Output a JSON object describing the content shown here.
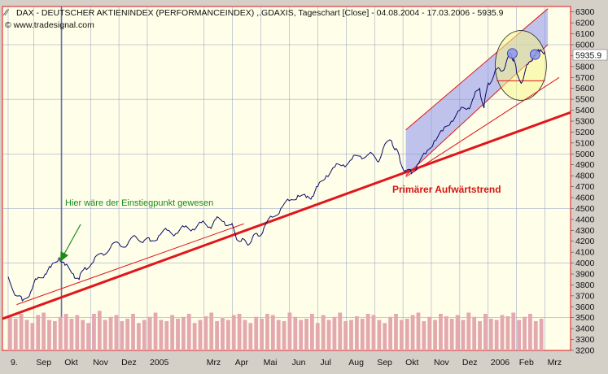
{
  "header": {
    "title": "DAX - DEUTSCHER AKTIENINDEX (PERFORMANCEINDEX) ,.GDAXIS, Tageschart [Close] - 04.08.2004 - 17.03.2006 - 5935.9",
    "source": "© www.tradesignal.com",
    "price_label": "5935.9"
  },
  "annotations": {
    "entry_point": "Hier wäre der Einstiegpunkt gewesen",
    "primary_trend": "Primärer Aufwärtstrend"
  },
  "colors": {
    "plot_bg": "#fffee8",
    "grid": "#8f9bc0",
    "price_line": "#0b0b66",
    "trend_line": "#e0161c",
    "channel_fill": "#7f87f0",
    "volume": "#e4a8b0",
    "ellipse_fill": "#f6f48a",
    "annotation_green": "#1a8a1a",
    "annotation_red": "#d41616"
  },
  "chart_data": {
    "type": "line",
    "title": "DAX - DEUTSCHER AKTIENINDEX (PERFORMANCEINDEX) ,.GDAXIS, Tageschart [Close] - 04.08.2004 - 17.03.2006 - 5935.9",
    "xlabel": "",
    "ylabel": "",
    "ylim": [
      3200,
      6350
    ],
    "grid": true,
    "x_ticks": [
      "9.",
      "Sep",
      "Okt",
      "Nov",
      "Dez",
      "2005",
      "Mrz",
      "Apr",
      "Mai",
      "Jun",
      "Jul",
      "Aug",
      "Sep",
      "Okt",
      "Nov",
      "Dez",
      "2006",
      "Feb",
      "Mrz"
    ],
    "x_tick_months": [
      0,
      0.9,
      1.9,
      2.9,
      3.9,
      4.9,
      6.9,
      7.9,
      8.9,
      9.9,
      10.9,
      11.9,
      12.9,
      13.9,
      14.9,
      15.9,
      16.9,
      17.9,
      18.9
    ],
    "y_ticks": [
      3200,
      3300,
      3400,
      3500,
      3600,
      3700,
      3800,
      3900,
      4000,
      4100,
      4200,
      4300,
      4400,
      4500,
      4600,
      4700,
      4800,
      4900,
      5000,
      5100,
      5200,
      5300,
      5400,
      5500,
      5600,
      5700,
      5800,
      5900,
      6000,
      6100,
      6200,
      6300
    ],
    "x_range_months": [
      -0.2,
      19.8
    ],
    "series": [
      {
        "values": [
          [
            0.0,
            3875
          ],
          [
            0.3,
            3700
          ],
          [
            0.5,
            3655
          ],
          [
            0.8,
            3740
          ],
          [
            1.0,
            3850
          ],
          [
            1.3,
            3900
          ],
          [
            1.5,
            3960
          ],
          [
            1.8,
            4050
          ],
          [
            2.0,
            3980
          ],
          [
            2.3,
            3900
          ],
          [
            2.5,
            3850
          ],
          [
            2.7,
            3960
          ],
          [
            3.0,
            4010
          ],
          [
            3.3,
            4090
          ],
          [
            3.6,
            4140
          ],
          [
            3.9,
            4180
          ],
          [
            4.2,
            4170
          ],
          [
            4.5,
            4240
          ],
          [
            4.8,
            4210
          ],
          [
            5.0,
            4200
          ],
          [
            5.3,
            4250
          ],
          [
            5.6,
            4300
          ],
          [
            5.9,
            4270
          ],
          [
            6.2,
            4330
          ],
          [
            6.5,
            4310
          ],
          [
            6.8,
            4370
          ],
          [
            7.1,
            4330
          ],
          [
            7.3,
            4400
          ],
          [
            7.6,
            4380
          ],
          [
            7.85,
            4350
          ],
          [
            8.0,
            4260
          ],
          [
            8.2,
            4200
          ],
          [
            8.4,
            4180
          ],
          [
            8.6,
            4230
          ],
          [
            8.8,
            4250
          ],
          [
            9.0,
            4320
          ],
          [
            9.3,
            4420
          ],
          [
            9.6,
            4500
          ],
          [
            9.9,
            4570
          ],
          [
            10.2,
            4620
          ],
          [
            10.5,
            4600
          ],
          [
            10.7,
            4610
          ],
          [
            10.9,
            4700
          ],
          [
            11.2,
            4800
          ],
          [
            11.5,
            4880
          ],
          [
            11.8,
            4900
          ],
          [
            12.1,
            4950
          ],
          [
            12.4,
            4980
          ],
          [
            12.7,
            5000
          ],
          [
            13.0,
            4930
          ],
          [
            13.2,
            5050
          ],
          [
            13.5,
            5120
          ],
          [
            13.65,
            5050
          ],
          [
            13.8,
            4930
          ],
          [
            14.0,
            4850
          ],
          [
            14.2,
            4820
          ],
          [
            14.4,
            4900
          ],
          [
            14.7,
            5000
          ],
          [
            15.0,
            5120
          ],
          [
            15.3,
            5210
          ],
          [
            15.6,
            5300
          ],
          [
            15.9,
            5400
          ],
          [
            16.2,
            5420
          ],
          [
            16.4,
            5520
          ],
          [
            16.6,
            5600
          ],
          [
            16.75,
            5420
          ],
          [
            16.9,
            5650
          ],
          [
            17.1,
            5720
          ],
          [
            17.3,
            5780
          ],
          [
            17.5,
            5800
          ],
          [
            17.7,
            5920
          ],
          [
            17.8,
            5870
          ],
          [
            17.9,
            5740
          ],
          [
            18.1,
            5660
          ],
          [
            18.3,
            5820
          ],
          [
            18.5,
            5900
          ],
          [
            18.7,
            5940
          ],
          [
            18.9,
            5936
          ]
        ]
      }
    ],
    "trend_lines": [
      {
        "from": [
          -0.2,
          3490
        ],
        "to": [
          19.8,
          5380
        ],
        "weight": "bold"
      },
      {
        "from": [
          0.3,
          3620
        ],
        "to": [
          8.3,
          4360
        ],
        "weight": "thin"
      },
      {
        "from": [
          14.0,
          4790
        ],
        "to": [
          19.4,
          5700
        ],
        "weight": "thin"
      }
    ],
    "channel": {
      "lower": [
        [
          14.0,
          4800
        ],
        [
          19.0,
          6000
        ]
      ],
      "upper": [
        [
          14.0,
          5220
        ],
        [
          19.0,
          6330
        ]
      ]
    },
    "support_segment": {
      "from": [
        17.2,
        5670
      ],
      "to": [
        18.9,
        5670
      ]
    },
    "highlight_ellipse": {
      "center": [
        18.05,
        5810
      ],
      "rx_months": 0.9,
      "ry_points": 320
    },
    "peaks": [
      [
        17.75,
        5920
      ],
      [
        18.55,
        5910
      ]
    ],
    "volume_relative": [
      0.55,
      0.52,
      0.6,
      0.5,
      0.45,
      0.58,
      0.62,
      0.5,
      0.48,
      0.55,
      0.6,
      0.52,
      0.58,
      0.5,
      0.45,
      0.6,
      0.65,
      0.5,
      0.55,
      0.58,
      0.48,
      0.52,
      0.6,
      0.45,
      0.5,
      0.55,
      0.62,
      0.5,
      0.48,
      0.58,
      0.52,
      0.55,
      0.6,
      0.45,
      0.5,
      0.56,
      0.62,
      0.48,
      0.54,
      0.5,
      0.58,
      0.6,
      0.5,
      0.45,
      0.55,
      0.52,
      0.6,
      0.58,
      0.5,
      0.48,
      0.62,
      0.55,
      0.5,
      0.52,
      0.6,
      0.45,
      0.58,
      0.5,
      0.55,
      0.62,
      0.48,
      0.5,
      0.56,
      0.52,
      0.6,
      0.58,
      0.5,
      0.45,
      0.55,
      0.6,
      0.5,
      0.52,
      0.58,
      0.62,
      0.48,
      0.55,
      0.5,
      0.6,
      0.56,
      0.52,
      0.58,
      0.5,
      0.62,
      0.55,
      0.48,
      0.6,
      0.52,
      0.5,
      0.58,
      0.56,
      0.62,
      0.5,
      0.55,
      0.6,
      0.48,
      0.52
    ]
  }
}
